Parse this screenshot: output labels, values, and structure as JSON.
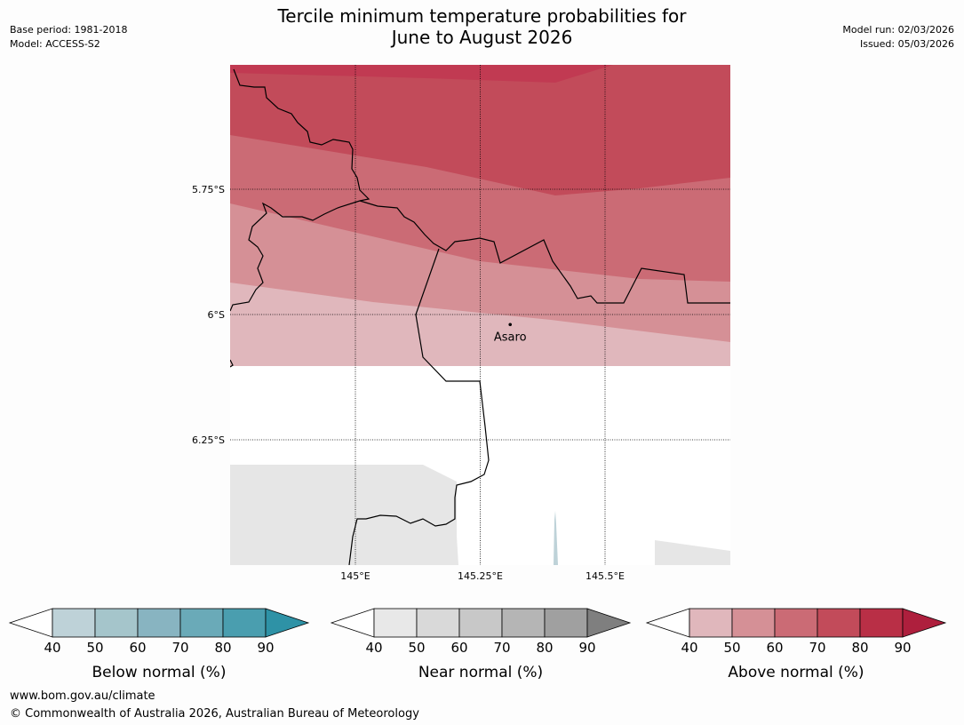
{
  "header": {
    "title_line1": "Tercile minimum temperature probabilities for",
    "title_line2": "June to August 2026",
    "base_period": "Base period: 1981-2018",
    "model": "Model: ACCESS-S2",
    "model_run": "Model run: 02/03/2026",
    "issued": "Issued: 05/03/2026"
  },
  "map": {
    "lat_labels": [
      "5.75°S",
      "6°S",
      "6.25°S"
    ],
    "lon_labels": [
      "145°E",
      "145.25°E",
      "145.5°E"
    ],
    "place": {
      "name": "Asaro",
      "lon": 145.31,
      "lat": -6.02
    }
  },
  "legends": [
    {
      "name": "below",
      "title": "Below normal (%)",
      "ticks": [
        "40",
        "50",
        "60",
        "70",
        "80",
        "90"
      ],
      "colors": [
        "#bed2d8",
        "#a5c5cb",
        "#88b4c1",
        "#6aaab8",
        "#4a9eaf",
        "#2e92a6"
      ],
      "arrow_color": "#2e92a6"
    },
    {
      "name": "near",
      "title": "Near normal (%)",
      "ticks": [
        "40",
        "50",
        "60",
        "70",
        "80",
        "90"
      ],
      "colors": [
        "#e8e8e8",
        "#d9d9d9",
        "#c8c8c8",
        "#b5b5b5",
        "#a0a0a0",
        "#7f7f7f"
      ],
      "arrow_color": "#7f7f7f"
    },
    {
      "name": "above",
      "title": "Above normal (%)",
      "ticks": [
        "40",
        "50",
        "60",
        "70",
        "80",
        "90"
      ],
      "colors": [
        "#e0b7bc",
        "#d59096",
        "#cb6b75",
        "#c24b5a",
        "#b92f46",
        "#ae1f3d"
      ],
      "arrow_color": "#ae1f3d"
    }
  ],
  "footer": {
    "url": "www.bom.gov.au/climate",
    "copyright": "© Commonwealth of Australia 2026, Australian Bureau of Meteorology"
  }
}
